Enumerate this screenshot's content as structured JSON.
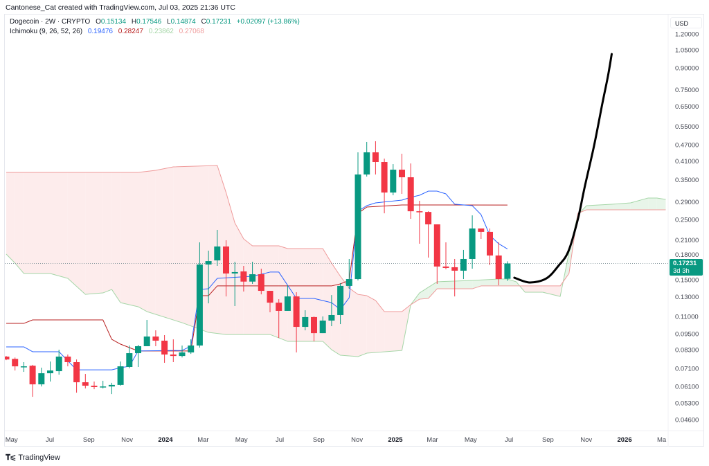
{
  "credit": "Cantonese_Cat created with TradingView.com, Jul 03, 2025 21:36 UTC",
  "legend": {
    "symbol": "Dogecoin · 2W · CRYPTO",
    "open_label": "O",
    "open": "0.15134",
    "high_label": "H",
    "high": "0.17546",
    "low_label": "L",
    "low": "0.14874",
    "close_label": "C",
    "close": "0.17231",
    "change": "+0.02097 (+13.86%)",
    "indicator": "Ichimoku (9, 26, 52, 26)",
    "indicator_values": [
      "0.19476",
      "0.28247",
      "0.23862",
      "0.27068"
    ]
  },
  "price_axis": {
    "currency": "USD"
  },
  "last_price": {
    "value": "0.17231",
    "countdown": "3d 3h"
  },
  "branding": {
    "logo_text": "TradingView",
    "logo_icon": "tradingview-logo-icon"
  },
  "colors": {
    "up": "#089981",
    "down": "#f23645",
    "tenkan": "#2962ff",
    "kijun": "#b71c1c",
    "span_a": "#a5d6a7",
    "span_b": "#ef9a9a",
    "cloud_up": "#e8f5e9",
    "cloud_down": "#fdecec",
    "annotation": "#000000"
  },
  "chart_data": {
    "type": "candlestick",
    "title": "",
    "y_scale": "log",
    "ylim": [
      0.043,
      1.25
    ],
    "grid": false,
    "yticks": [
      "1.20000",
      "1.05000",
      "0.90000",
      "0.75000",
      "0.65000",
      "0.55000",
      "0.47000",
      "0.41000",
      "0.35000",
      "0.29000",
      "0.25000",
      "0.21000",
      "0.18000",
      "0.15000",
      "0.13000",
      "0.11000",
      "0.09500",
      "0.08300",
      "0.07100",
      "0.06100",
      "0.05300",
      "0.04600"
    ],
    "xticks": [
      {
        "date": "2023-05-01",
        "label": "May"
      },
      {
        "date": "2023-07-01",
        "label": "Jul"
      },
      {
        "date": "2023-09-01",
        "label": "Sep"
      },
      {
        "date": "2023-11-01",
        "label": "Nov"
      },
      {
        "date": "2024-01-01",
        "label": "2024"
      },
      {
        "date": "2024-03-01",
        "label": "Mar"
      },
      {
        "date": "2024-05-01",
        "label": "May"
      },
      {
        "date": "2024-07-01",
        "label": "Jul"
      },
      {
        "date": "2024-09-01",
        "label": "Sep"
      },
      {
        "date": "2024-11-01",
        "label": "Nov"
      },
      {
        "date": "2025-01-01",
        "label": "2025"
      },
      {
        "date": "2025-03-01",
        "label": "Mar"
      },
      {
        "date": "2025-05-01",
        "label": "May"
      },
      {
        "date": "2025-07-01",
        "label": "Jul"
      },
      {
        "date": "2025-09-01",
        "label": "Sep"
      },
      {
        "date": "2025-11-01",
        "label": "Nov"
      },
      {
        "date": "2026-01-01",
        "label": "2026"
      },
      {
        "date": "2026-03-01",
        "label": "Ma"
      }
    ],
    "candle_fields": [
      "date",
      "open",
      "high",
      "low",
      "close"
    ],
    "candles": [
      [
        "2023-04-17",
        0.0784,
        0.0788,
        0.0761,
        0.0765
      ],
      [
        "2023-05-01",
        0.0769,
        0.0778,
        0.0697,
        0.0722
      ],
      [
        "2023-05-15",
        0.0718,
        0.0748,
        0.0689,
        0.0722
      ],
      [
        "2023-05-29",
        0.0726,
        0.0731,
        0.0558,
        0.062
      ],
      [
        "2023-06-12",
        0.062,
        0.0714,
        0.0609,
        0.0681
      ],
      [
        "2023-06-26",
        0.0681,
        0.0752,
        0.0635,
        0.0697
      ],
      [
        "2023-07-10",
        0.0693,
        0.0831,
        0.0673,
        0.0784
      ],
      [
        "2023-07-24",
        0.0784,
        0.0798,
        0.0722,
        0.0748
      ],
      [
        "2023-08-07",
        0.0748,
        0.0765,
        0.0578,
        0.0631
      ],
      [
        "2023-08-21",
        0.0631,
        0.0677,
        0.0599,
        0.0613
      ],
      [
        "2023-09-04",
        0.0613,
        0.0635,
        0.0595,
        0.0606
      ],
      [
        "2023-09-18",
        0.0606,
        0.0639,
        0.0599,
        0.0609
      ],
      [
        "2023-10-02",
        0.0609,
        0.0628,
        0.0571,
        0.0617
      ],
      [
        "2023-10-16",
        0.0617,
        0.0752,
        0.0613,
        0.0722
      ],
      [
        "2023-10-30",
        0.0718,
        0.0861,
        0.071,
        0.0807
      ],
      [
        "2023-11-13",
        0.0807,
        0.0866,
        0.0718,
        0.0856
      ],
      [
        "2023-11-27",
        0.0856,
        0.1069,
        0.0856,
        0.0929
      ],
      [
        "2023-12-11",
        0.0929,
        0.0979,
        0.0856,
        0.0897
      ],
      [
        "2023-12-25",
        0.0897,
        0.094,
        0.0744,
        0.0798
      ],
      [
        "2024-01-08",
        0.0798,
        0.0907,
        0.0748,
        0.0788
      ],
      [
        "2024-01-22",
        0.0788,
        0.0861,
        0.0778,
        0.0812
      ],
      [
        "2024-02-05",
        0.0812,
        0.0907,
        0.0802,
        0.0861
      ],
      [
        "2024-02-19",
        0.0861,
        0.206,
        0.0846,
        0.1708
      ],
      [
        "2024-03-04",
        0.1708,
        0.192,
        0.123,
        0.1758
      ],
      [
        "2024-03-18",
        0.1768,
        0.2289,
        0.1688,
        0.1989
      ],
      [
        "2024-04-01",
        0.1989,
        0.2096,
        0.1304,
        0.1583
      ],
      [
        "2024-04-15",
        0.1583,
        0.1748,
        0.1202,
        0.1602
      ],
      [
        "2024-04-29",
        0.1611,
        0.1688,
        0.1359,
        0.1478
      ],
      [
        "2024-05-13",
        0.1478,
        0.1748,
        0.145,
        0.1573
      ],
      [
        "2024-05-27",
        0.1573,
        0.1649,
        0.1327,
        0.1367
      ],
      [
        "2024-06-10",
        0.1367,
        0.1367,
        0.114,
        0.1237
      ],
      [
        "2024-06-24",
        0.1237,
        0.1274,
        0.0918,
        0.1154
      ],
      [
        "2024-07-08",
        0.1154,
        0.1433,
        0.1154,
        0.1304
      ],
      [
        "2024-07-22",
        0.1304,
        0.1351,
        0.0812,
        0.1008
      ],
      [
        "2024-08-05",
        0.1008,
        0.116,
        0.0979,
        0.1095
      ],
      [
        "2024-08-19",
        0.1095,
        0.1101,
        0.0892,
        0.0956
      ],
      [
        "2024-09-02",
        0.0956,
        0.1101,
        0.0956,
        0.1063
      ],
      [
        "2024-09-16",
        0.1063,
        0.1319,
        0.1014,
        0.1114
      ],
      [
        "2024-09-30",
        0.1114,
        0.1458,
        0.1032,
        0.1425
      ],
      [
        "2024-10-14",
        0.1425,
        0.179,
        0.1391,
        0.151
      ],
      [
        "2024-10-28",
        0.151,
        0.4409,
        0.1493,
        0.3656
      ],
      [
        "2024-11-11",
        0.3656,
        0.4815,
        0.3593,
        0.4409
      ],
      [
        "2024-11-25",
        0.4409,
        0.4843,
        0.3656,
        0.4062
      ],
      [
        "2024-12-09",
        0.4062,
        0.4181,
        0.2633,
        0.3139
      ],
      [
        "2024-12-23",
        0.3139,
        0.399,
        0.3067,
        0.3808
      ],
      [
        "2025-01-06",
        0.3808,
        0.4358,
        0.3103,
        0.3571
      ],
      [
        "2025-01-20",
        0.3571,
        0.4014,
        0.2513,
        0.2679
      ],
      [
        "2025-02-03",
        0.2679,
        0.2927,
        0.2036,
        0.2663
      ],
      [
        "2025-02-17",
        0.2663,
        0.2679,
        0.1811,
        0.2398
      ],
      [
        "2025-03-03",
        0.2398,
        0.2398,
        0.145,
        0.1679
      ],
      [
        "2025-03-17",
        0.1679,
        0.206,
        0.164,
        0.1659
      ],
      [
        "2025-03-31",
        0.1669,
        0.179,
        0.1304,
        0.1621
      ],
      [
        "2025-04-14",
        0.1621,
        0.1932,
        0.151,
        0.179
      ],
      [
        "2025-04-28",
        0.179,
        0.2588,
        0.1649,
        0.2316
      ],
      [
        "2025-05-12",
        0.2316,
        0.2316,
        0.2121,
        0.225
      ],
      [
        "2025-05-26",
        0.225,
        0.2316,
        0.1698,
        0.1843
      ],
      [
        "2025-06-09",
        0.1843,
        0.206,
        0.1433,
        0.151
      ],
      [
        "2025-06-23",
        0.15134,
        0.17546,
        0.14874,
        0.17231
      ]
    ],
    "ichimoku": {
      "tenkan": [
        [
          "2023-04-17",
          0.0851
        ],
        [
          "2023-05-15",
          0.0851
        ],
        [
          "2023-05-29",
          0.0817
        ],
        [
          "2023-07-10",
          0.0817
        ],
        [
          "2023-08-07",
          0.0701
        ],
        [
          "2023-10-02",
          0.0701
        ],
        [
          "2023-10-16",
          0.0714
        ],
        [
          "2023-10-30",
          0.0722
        ],
        [
          "2023-11-13",
          0.0822
        ],
        [
          "2024-01-22",
          0.0826
        ],
        [
          "2024-02-05",
          0.0856
        ],
        [
          "2024-02-19",
          0.1383
        ],
        [
          "2024-03-04",
          0.1391
        ],
        [
          "2024-03-18",
          0.1519
        ],
        [
          "2024-05-13",
          0.1546
        ],
        [
          "2024-06-10",
          0.1602
        ],
        [
          "2024-06-24",
          0.1602
        ],
        [
          "2024-07-22",
          0.1282
        ],
        [
          "2024-08-19",
          0.1282
        ],
        [
          "2024-09-16",
          0.1237
        ],
        [
          "2024-09-30",
          0.1167
        ],
        [
          "2024-10-14",
          0.1289
        ],
        [
          "2024-10-28",
          0.2679
        ],
        [
          "2024-11-11",
          0.2809
        ],
        [
          "2024-11-25",
          0.2876
        ],
        [
          "2025-01-06",
          0.2944
        ],
        [
          "2025-01-20",
          0.3014
        ],
        [
          "2025-02-03",
          0.3067
        ],
        [
          "2025-02-17",
          0.3176
        ],
        [
          "2025-03-03",
          0.3176
        ],
        [
          "2025-03-17",
          0.3103
        ],
        [
          "2025-03-31",
          0.2844
        ],
        [
          "2025-04-28",
          0.2809
        ],
        [
          "2025-05-12",
          0.2603
        ],
        [
          "2025-05-26",
          0.2184
        ],
        [
          "2025-06-09",
          0.2036
        ],
        [
          "2025-06-23",
          0.19476
        ]
      ],
      "kijun": [
        [
          "2023-04-17",
          0.1038
        ],
        [
          "2023-05-15",
          0.1038
        ],
        [
          "2023-05-29",
          0.1069
        ],
        [
          "2023-09-18",
          0.1069
        ],
        [
          "2023-10-02",
          0.0907
        ],
        [
          "2023-10-16",
          0.0871
        ],
        [
          "2023-10-30",
          0.0846
        ],
        [
          "2023-11-13",
          0.0822
        ],
        [
          "2024-02-05",
          0.0822
        ],
        [
          "2024-02-19",
          0.1312
        ],
        [
          "2024-03-04",
          0.1312
        ],
        [
          "2024-03-18",
          0.1425
        ],
        [
          "2024-09-16",
          0.1425
        ],
        [
          "2024-09-30",
          0.145
        ],
        [
          "2024-10-14",
          0.1493
        ],
        [
          "2024-10-28",
          0.2633
        ],
        [
          "2024-11-11",
          0.2776
        ],
        [
          "2025-01-06",
          0.2826
        ],
        [
          "2025-06-23",
          0.28247
        ]
      ],
      "span_a": [
        [
          "2023-04-17",
          0.1865
        ],
        [
          "2023-05-01",
          0.1728
        ],
        [
          "2023-05-15",
          0.1583
        ],
        [
          "2023-06-26",
          0.1583
        ],
        [
          "2023-07-24",
          0.1519
        ],
        [
          "2023-08-21",
          0.1327
        ],
        [
          "2023-09-18",
          0.1343
        ],
        [
          "2023-10-02",
          0.1383
        ],
        [
          "2023-10-16",
          0.1237
        ],
        [
          "2023-11-13",
          0.1195
        ],
        [
          "2023-11-27",
          0.1147
        ],
        [
          "2024-01-22",
          0.1044
        ],
        [
          "2024-03-04",
          0.0962
        ],
        [
          "2024-04-01",
          0.0945
        ],
        [
          "2024-06-10",
          0.0945
        ],
        [
          "2024-07-08",
          0.0892
        ],
        [
          "2024-09-02",
          0.0892
        ],
        [
          "2024-09-16",
          0.0831
        ],
        [
          "2024-09-30",
          0.0793
        ],
        [
          "2024-10-28",
          0.0784
        ],
        [
          "2024-11-11",
          0.0807
        ],
        [
          "2025-01-06",
          0.0826
        ],
        [
          "2025-01-20",
          0.1216
        ],
        [
          "2025-02-03",
          0.1343
        ],
        [
          "2025-02-17",
          0.1408
        ],
        [
          "2025-03-03",
          0.1476
        ],
        [
          "2025-04-28",
          0.1493
        ],
        [
          "2025-06-09",
          0.151
        ],
        [
          "2025-06-23",
          0.151
        ],
        [
          "2025-07-07",
          0.1476
        ],
        [
          "2025-07-21",
          0.1351
        ],
        [
          "2025-08-18",
          0.1351
        ],
        [
          "2025-09-15",
          0.1304
        ],
        [
          "2025-09-29",
          0.1887
        ],
        [
          "2025-10-13",
          0.2603
        ],
        [
          "2025-10-27",
          0.2809
        ],
        [
          "2025-12-08",
          0.2844
        ],
        [
          "2026-01-05",
          0.2876
        ],
        [
          "2026-02-02",
          0.2997
        ],
        [
          "2026-02-16",
          0.2997
        ],
        [
          "2026-03-02",
          0.2961
        ]
      ],
      "span_b": [
        [
          "2023-04-17",
          0.372
        ],
        [
          "2023-11-13",
          0.372
        ],
        [
          "2023-12-11",
          0.3786
        ],
        [
          "2024-01-08",
          0.3899
        ],
        [
          "2024-03-18",
          0.3945
        ],
        [
          "2024-04-01",
          0.3139
        ],
        [
          "2024-04-15",
          0.2427
        ],
        [
          "2024-04-29",
          0.2121
        ],
        [
          "2024-05-13",
          0.2
        ],
        [
          "2024-06-24",
          0.2
        ],
        [
          "2024-07-08",
          0.1954
        ],
        [
          "2024-09-02",
          0.1954
        ],
        [
          "2024-09-16",
          0.1728
        ],
        [
          "2024-09-30",
          0.1546
        ],
        [
          "2024-10-14",
          0.1399
        ],
        [
          "2024-10-28",
          0.1327
        ],
        [
          "2024-11-11",
          0.1312
        ],
        [
          "2024-11-25",
          0.126
        ],
        [
          "2024-12-09",
          0.1147
        ],
        [
          "2025-01-06",
          0.1147
        ],
        [
          "2025-01-20",
          0.1216
        ],
        [
          "2025-02-03",
          0.1274
        ],
        [
          "2025-02-17",
          0.1282
        ],
        [
          "2025-03-03",
          0.1391
        ],
        [
          "2025-04-28",
          0.1391
        ],
        [
          "2025-05-12",
          0.1425
        ],
        [
          "2025-09-15",
          0.1425
        ],
        [
          "2025-09-29",
          0.1583
        ],
        [
          "2025-10-13",
          0.2634
        ],
        [
          "2025-10-27",
          0.2712
        ],
        [
          "2026-03-02",
          0.2712
        ]
      ]
    },
    "annotation_curve": [
      [
        "2025-07-04",
        0.1528
      ],
      [
        "2025-07-28",
        0.1467
      ],
      [
        "2025-08-24",
        0.1519
      ],
      [
        "2025-09-13",
        0.1698
      ],
      [
        "2025-09-28",
        0.1909
      ],
      [
        "2025-10-13",
        0.2499
      ],
      [
        "2025-10-24",
        0.329
      ],
      [
        "2025-11-08",
        0.4675
      ],
      [
        "2025-11-21",
        0.6643
      ],
      [
        "2025-11-30",
        0.8396
      ],
      [
        "2025-12-06",
        1.0126
      ]
    ]
  }
}
